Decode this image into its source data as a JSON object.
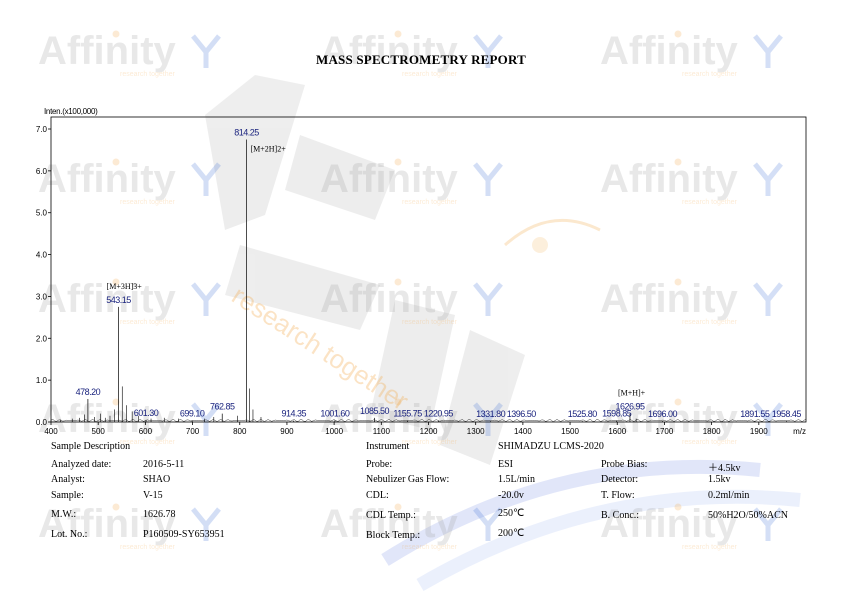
{
  "report": {
    "title": "MASS SPECTROMETRY REPORT",
    "watermark_brand": "Affinity",
    "watermark_tagline": "research together"
  },
  "chart_data": {
    "type": "line",
    "ylabel": "Inten.(x100,000)",
    "xlabel": "m/z",
    "xlim": [
      400,
      2000
    ],
    "ylim": [
      0,
      7.0
    ],
    "xticks": [
      400,
      500,
      600,
      700,
      800,
      900,
      1000,
      1100,
      1200,
      1300,
      1400,
      1500,
      1600,
      1700,
      1800,
      1900
    ],
    "yticks": [
      "0.0",
      "1.0",
      "2.0",
      "3.0",
      "4.0",
      "5.0",
      "6.0",
      "7.0"
    ],
    "peaks": [
      {
        "mz": 478.2,
        "intensity": 0.55,
        "label": "478.20"
      },
      {
        "mz": 543.15,
        "intensity": 2.75,
        "label": "543.15",
        "annotation": "[M+3H]3+"
      },
      {
        "mz": 601.3,
        "intensity": 0.05,
        "label": "601.30"
      },
      {
        "mz": 699.1,
        "intensity": 0.04,
        "label": "699.10"
      },
      {
        "mz": 762.85,
        "intensity": 0.2,
        "label": "762.85"
      },
      {
        "mz": 814.25,
        "intensity": 6.75,
        "label": "814.25",
        "annotation": "[M+2H]2+"
      },
      {
        "mz": 914.35,
        "intensity": 0.03,
        "label": "914.35"
      },
      {
        "mz": 1001.6,
        "intensity": 0.04,
        "label": "1001.60"
      },
      {
        "mz": 1085.5,
        "intensity": 0.1,
        "label": "1085.50"
      },
      {
        "mz": 1155.75,
        "intensity": 0.03,
        "label": "1155.75"
      },
      {
        "mz": 1220.95,
        "intensity": 0.03,
        "label": "1220.95"
      },
      {
        "mz": 1331.8,
        "intensity": 0.02,
        "label": "1331.80"
      },
      {
        "mz": 1396.5,
        "intensity": 0.02,
        "label": "1396.50"
      },
      {
        "mz": 1525.8,
        "intensity": 0.02,
        "label": "1525.80"
      },
      {
        "mz": 1598.85,
        "intensity": 0.03,
        "label": "1598.85"
      },
      {
        "mz": 1626.95,
        "intensity": 0.2,
        "label": "1626.95",
        "annotation": "[M+H]+"
      },
      {
        "mz": 1696.0,
        "intensity": 0.02,
        "label": "1696.00"
      },
      {
        "mz": 1891.55,
        "intensity": 0.02,
        "label": "1891.55"
      },
      {
        "mz": 1958.45,
        "intensity": 0.02,
        "label": "1958.45"
      }
    ],
    "minor_peaks": [
      {
        "mz": 420,
        "intensity": 0.05
      },
      {
        "mz": 445,
        "intensity": 0.08
      },
      {
        "mz": 460,
        "intensity": 0.1
      },
      {
        "mz": 471,
        "intensity": 0.18
      },
      {
        "mz": 492,
        "intensity": 0.12
      },
      {
        "mz": 505,
        "intensity": 0.2
      },
      {
        "mz": 515,
        "intensity": 0.1
      },
      {
        "mz": 525,
        "intensity": 0.15
      },
      {
        "mz": 535,
        "intensity": 0.3
      },
      {
        "mz": 551,
        "intensity": 0.85
      },
      {
        "mz": 560,
        "intensity": 0.4
      },
      {
        "mz": 572,
        "intensity": 0.25
      },
      {
        "mz": 585,
        "intensity": 0.15
      },
      {
        "mz": 612,
        "intensity": 0.08
      },
      {
        "mz": 640,
        "intensity": 0.1
      },
      {
        "mz": 670,
        "intensity": 0.08
      },
      {
        "mz": 725,
        "intensity": 0.08
      },
      {
        "mz": 745,
        "intensity": 0.12
      },
      {
        "mz": 795,
        "intensity": 0.15
      },
      {
        "mz": 821,
        "intensity": 0.8
      },
      {
        "mz": 828,
        "intensity": 0.3
      },
      {
        "mz": 845,
        "intensity": 0.12
      },
      {
        "mz": 1640,
        "intensity": 0.08
      }
    ],
    "colors": {
      "axis": "#000000",
      "trace": "#000000",
      "peak_label": "#1a237e",
      "annotation": "#000000"
    }
  },
  "sample_info": {
    "sample_description": "Sample Description",
    "analyzed_date": {
      "label": "Analyzed date:",
      "value": "2016-5-11"
    },
    "analyst": {
      "label": "Analyst:",
      "value": "SHAO"
    },
    "sample": {
      "label": "Sample:",
      "value": "V-15"
    },
    "mw": {
      "label": "M.W.:",
      "value": "1626.78"
    },
    "lot_no": {
      "label": "Lot. No.:",
      "value": "P160509-SY653951"
    }
  },
  "instrument_info": {
    "instrument": {
      "label": "Instrument",
      "value": "SHIMADZU LCMS-2020"
    },
    "probe": {
      "label": "Probe:",
      "value": "ESI"
    },
    "nebulizer": {
      "label": "Nebulizer Gas Flow:",
      "value": "1.5L/min"
    },
    "cdl": {
      "label": "CDL:",
      "value": "-20.0v"
    },
    "cdl_temp": {
      "label": "CDL Temp.:",
      "value": "250℃"
    },
    "block_temp": {
      "label": "Block Temp.:",
      "value": "200℃"
    },
    "probe_bias": {
      "label": "Probe Bias:",
      "value": "＋4.5kv"
    },
    "detector": {
      "label": "Detector:",
      "value": "1.5kv"
    },
    "t_flow": {
      "label": "T. Flow:",
      "value": "0.2ml/min"
    },
    "b_conc": {
      "label": "B. Conc.:",
      "value": "50%H2O/50%ACN"
    }
  }
}
